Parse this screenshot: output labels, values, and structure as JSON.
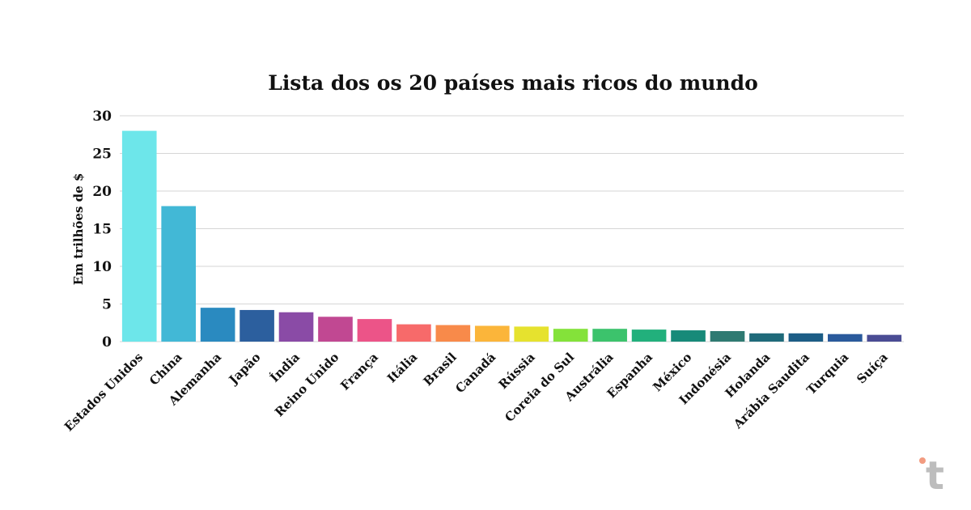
{
  "chart_data": {
    "type": "bar",
    "title": "Lista dos os 20 países mais ricos do mundo",
    "xlabel": "",
    "ylabel": "Em trilhões de $",
    "ylim": [
      0,
      30
    ],
    "yticks": [
      0,
      5,
      10,
      15,
      20,
      25,
      30
    ],
    "grid": true,
    "categories": [
      "Estados Unidos",
      "China",
      "Alemanha",
      "Japão",
      "Índia",
      "Reino Unido",
      "França",
      "Itália",
      "Brasil",
      "Canadá",
      "Rússia",
      "Coreia do Sul",
      "Austrália",
      "Espanha",
      "México",
      "Indonésia",
      "Holanda",
      "Arábia Saudita",
      "Turquia",
      "Suíça"
    ],
    "values": [
      28.0,
      18.0,
      4.5,
      4.2,
      3.9,
      3.3,
      3.0,
      2.3,
      2.2,
      2.1,
      2.0,
      1.7,
      1.7,
      1.6,
      1.5,
      1.4,
      1.1,
      1.1,
      1.0,
      0.9
    ],
    "colors": [
      "#6de6ea",
      "#42b8d6",
      "#2a8ac0",
      "#2c5f9e",
      "#8a4ba6",
      "#c14892",
      "#ec5488",
      "#f76a6a",
      "#f88a4a",
      "#fbb53a",
      "#e6e22e",
      "#84e23a",
      "#3cc36c",
      "#22b07c",
      "#178a79",
      "#2f7a72",
      "#1f6a7a",
      "#1c5d86",
      "#2a5a9c",
      "#4a4c94"
    ]
  },
  "logo": {
    "letter": "t",
    "dot_color": "#f29b80",
    "color": "#bdbdbd"
  }
}
